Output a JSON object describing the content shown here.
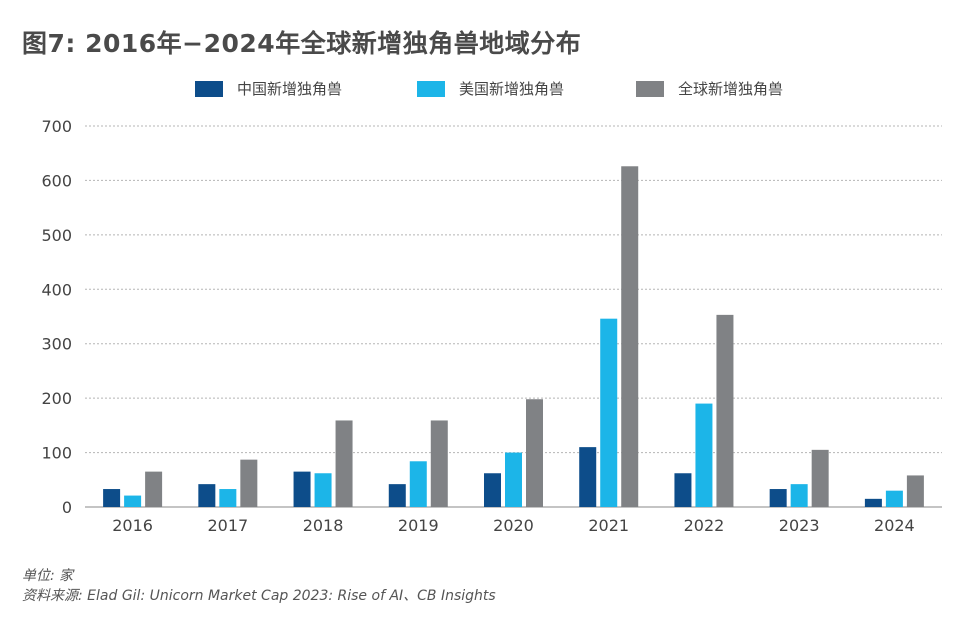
{
  "title": "图7: 2016年−2024年全球新增独角兽地域分布",
  "footer": {
    "unit": "单位: 家",
    "source": "资料来源: Elad Gil: Unicorn Market Cap 2023: Rise of AI、CB Insights"
  },
  "colors": {
    "china": "#0d4d8a",
    "usa": "#1cb5e8",
    "global": "#808285",
    "grid": "#b5b5b5",
    "axis": "#888888"
  },
  "chart_data": {
    "type": "bar",
    "categories": [
      "2016",
      "2017",
      "2018",
      "2019",
      "2020",
      "2021",
      "2022",
      "2023",
      "2024"
    ],
    "series": [
      {
        "name": "中国新增独角兽",
        "values": [
          33,
          42,
          65,
          42,
          62,
          110,
          62,
          33,
          15
        ]
      },
      {
        "name": "美国新增独角兽",
        "values": [
          21,
          33,
          62,
          84,
          100,
          346,
          190,
          42,
          30
        ]
      },
      {
        "name": "全球新增独角兽",
        "values": [
          65,
          87,
          159,
          159,
          198,
          626,
          353,
          105,
          58
        ]
      }
    ],
    "ylim": [
      0,
      700
    ],
    "yticks": [
      0,
      100,
      200,
      300,
      400,
      500,
      600,
      700
    ],
    "grid": true,
    "legend_position": "top-center",
    "xlabel": "",
    "ylabel": ""
  }
}
